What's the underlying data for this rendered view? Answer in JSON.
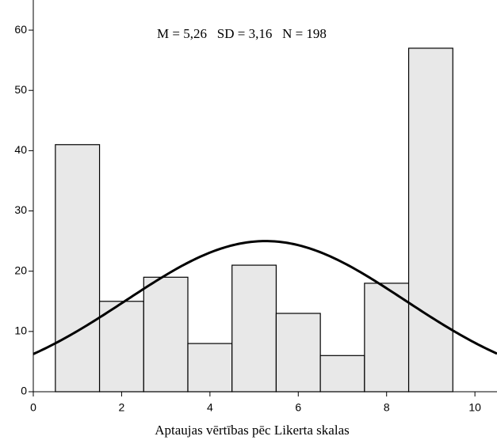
{
  "chart_data": {
    "type": "histogram",
    "annotation": "M = 5,26   SD = 3,16   N = 198",
    "x_label": "Aptaujas vērtības pēc Likerta skalas",
    "bins": [
      0.5,
      1.5,
      2.5,
      3.5,
      4.5,
      5.5,
      6.5,
      7.5,
      8.5,
      9.5
    ],
    "values": [
      41,
      15,
      19,
      8,
      21,
      13,
      6,
      18,
      57
    ],
    "color": "#e8e8e8",
    "normal_curve": {
      "mean": 5.26,
      "sd": 3.16,
      "n": 198
    },
    "xlim": [
      0,
      10.5
    ],
    "xticks": [
      0,
      2,
      4,
      6,
      8,
      10
    ],
    "ylim": [
      0,
      65
    ],
    "yticks": [
      0,
      10,
      20,
      30,
      40,
      50,
      60
    ]
  }
}
